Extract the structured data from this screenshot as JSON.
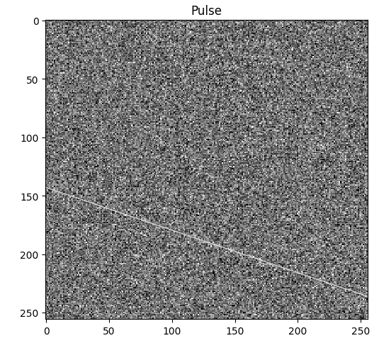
{
  "chart_data": {
    "type": "image",
    "title": "Pulse",
    "xlim": [
      -0.5,
      255.5
    ],
    "ylim": [
      255.5,
      -0.5
    ],
    "xticks": [
      0,
      50,
      100,
      150,
      200,
      250
    ],
    "yticks": [
      0,
      50,
      100,
      150,
      200,
      250
    ],
    "series": [
      {
        "name": "pulse",
        "type": "line",
        "color": "#e8e8e8",
        "x": [
          0,
          255
        ],
        "values": [
          143,
          236
        ]
      }
    ]
  }
}
